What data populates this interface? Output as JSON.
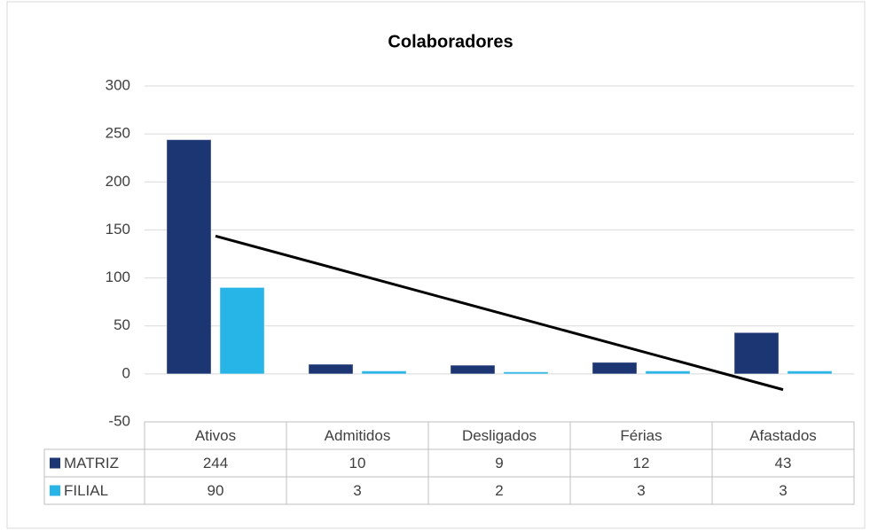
{
  "chart_data": {
    "type": "bar",
    "title": "Colaboradores",
    "categories": [
      "Ativos",
      "Admitidos",
      "Desligados",
      "Férias",
      "Afastados"
    ],
    "series": [
      {
        "name": "MATRIZ",
        "color": "#1c3673",
        "values": [
          244,
          10,
          9,
          12,
          43
        ],
        "trendline": "linear"
      },
      {
        "name": "FILIAL",
        "color": "#27b4e6",
        "values": [
          90,
          3,
          2,
          3,
          3
        ]
      }
    ],
    "ylim": [
      -50,
      300
    ],
    "yticks": [
      -50,
      0,
      50,
      100,
      150,
      200,
      250,
      300
    ],
    "grid": true,
    "data_table": true
  }
}
